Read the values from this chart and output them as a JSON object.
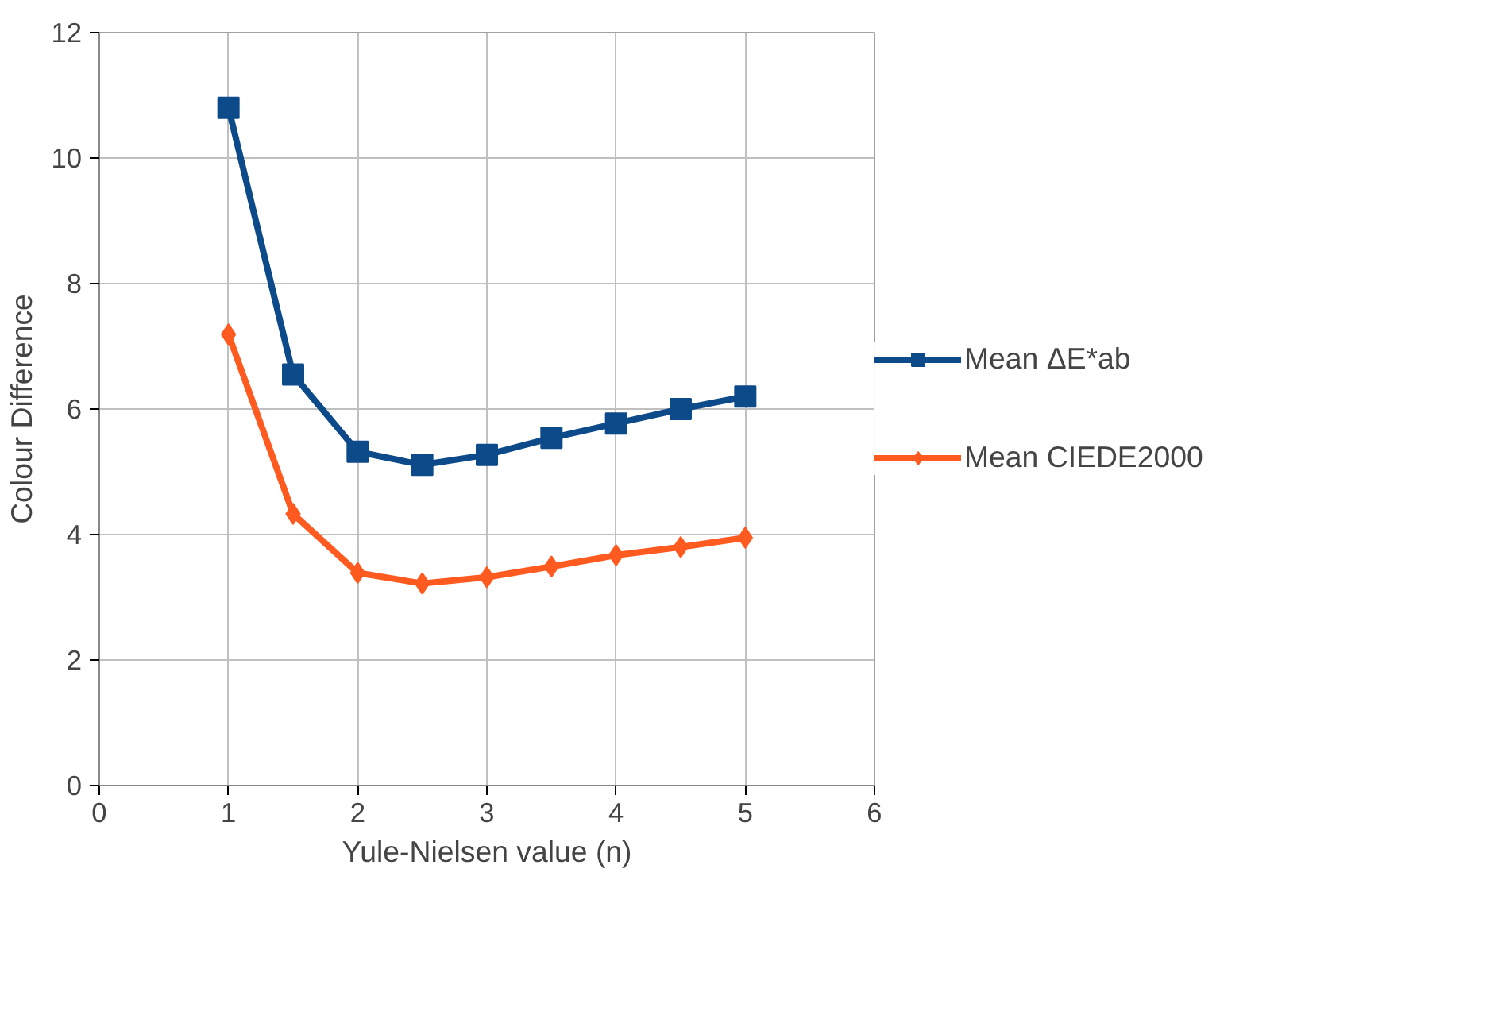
{
  "chart_data": {
    "type": "line",
    "xlabel": "Yule-Nielsen value (n)",
    "ylabel": "Colour Difference",
    "x": [
      1,
      1.5,
      2,
      2.5,
      3,
      3.5,
      4,
      4.5,
      5
    ],
    "series": [
      {
        "name": "Mean ΔE*ab",
        "color": "#0d4a8a",
        "marker": "square",
        "values": [
          10.8,
          6.55,
          5.32,
          5.11,
          5.27,
          5.54,
          5.77,
          6.0,
          6.2
        ]
      },
      {
        "name": "Mean CIEDE2000",
        "color": "#ff5a1f",
        "marker": "diamond",
        "values": [
          7.19,
          4.33,
          3.39,
          3.22,
          3.32,
          3.49,
          3.67,
          3.8,
          3.95
        ]
      }
    ],
    "xlim": [
      0,
      6
    ],
    "xticks": [
      0,
      1,
      2,
      3,
      4,
      5,
      6
    ],
    "ylim": [
      0,
      12
    ],
    "yticks": [
      0,
      2,
      4,
      6,
      8,
      10,
      12
    ],
    "grid": true,
    "legend": "right",
    "line_style": "solid"
  }
}
